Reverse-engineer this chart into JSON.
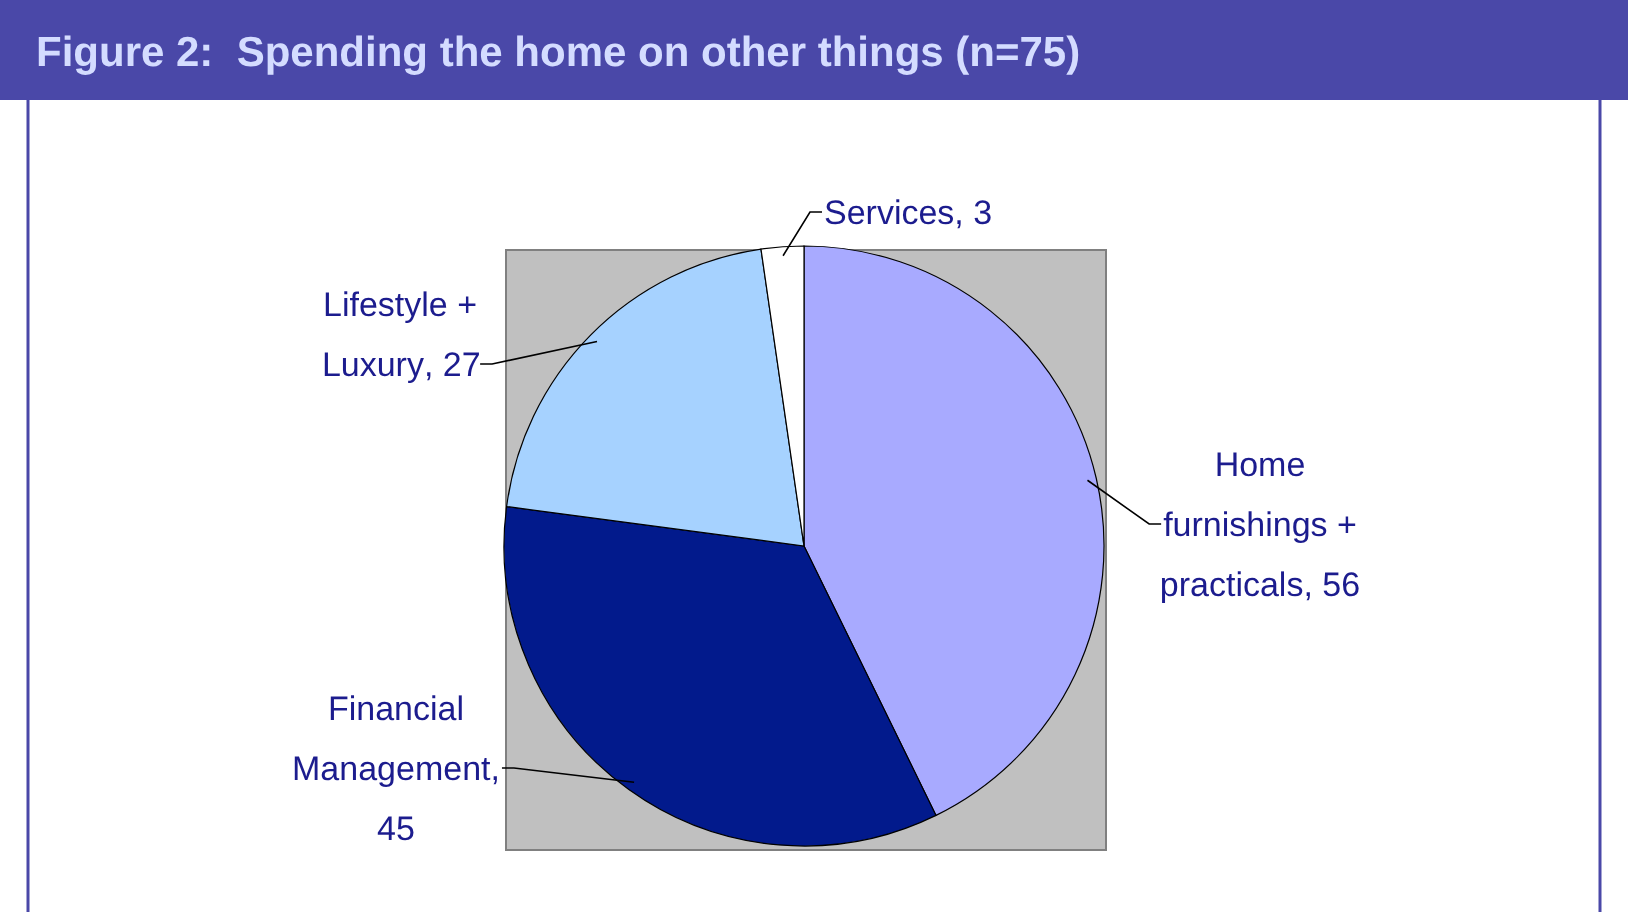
{
  "chart_data": {
    "type": "pie",
    "title": "Figure 2:  Spending the home on other things (n=75)",
    "categories": [
      "Home furnishings + practicals",
      "Financial Management",
      "Lifestyle + Luxury",
      "Services"
    ],
    "values": [
      56,
      45,
      27,
      3
    ],
    "colors": [
      "#a8aaff",
      "#021a8c",
      "#a6d2ff",
      "#ffffff"
    ],
    "value_labels": [
      ", 56",
      ", 45",
      ", 27",
      ", 3"
    ]
  }
}
